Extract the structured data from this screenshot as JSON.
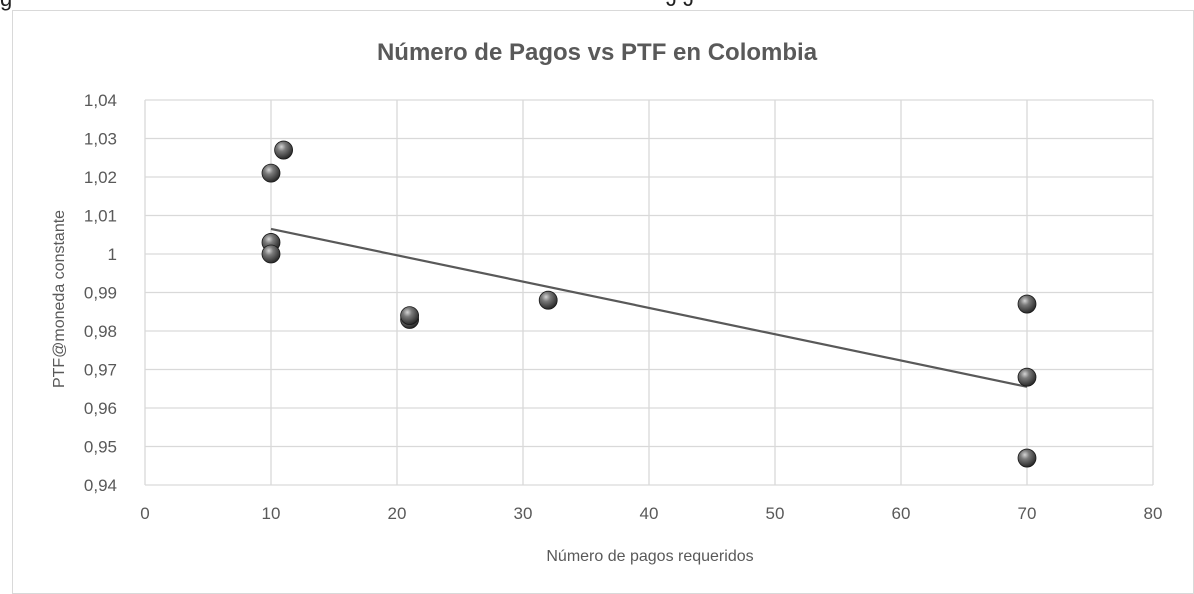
{
  "page": {
    "top_text_left": "g",
    "top_text_mid": "J J"
  },
  "chart_data": {
    "type": "scatter",
    "title": "Número de Pagos vs PTF en Colombia",
    "xlabel": "Número de pagos requeridos",
    "ylabel": "PTF@moneda constante",
    "xlim": [
      0,
      80
    ],
    "ylim": [
      0.94,
      1.04
    ],
    "x_ticks": [
      0,
      10,
      20,
      30,
      40,
      50,
      60,
      70,
      80
    ],
    "y_ticks": [
      0.94,
      0.95,
      0.96,
      0.97,
      0.98,
      0.99,
      1.0,
      1.01,
      1.02,
      1.03,
      1.04
    ],
    "x_tick_labels": [
      "0",
      "10",
      "20",
      "30",
      "40",
      "50",
      "60",
      "70",
      "80"
    ],
    "y_tick_labels": [
      "0,94",
      "0,95",
      "0,96",
      "0,97",
      "0,98",
      "0,99",
      "1",
      "1,01",
      "1,02",
      "1,03",
      "1,04"
    ],
    "grid": true,
    "legend": "none",
    "series": [
      {
        "x": [
          10,
          11,
          10,
          10,
          21,
          21,
          32,
          70,
          70,
          70
        ],
        "y": [
          1.021,
          1.027,
          1.003,
          1.0,
          0.983,
          0.984,
          0.988,
          0.987,
          0.968,
          0.947
        ],
        "color": "#595959"
      }
    ],
    "trendline": {
      "type": "linear",
      "x": [
        10,
        70
      ],
      "y": [
        1.0065,
        0.9655
      ],
      "color": "#595959"
    }
  }
}
